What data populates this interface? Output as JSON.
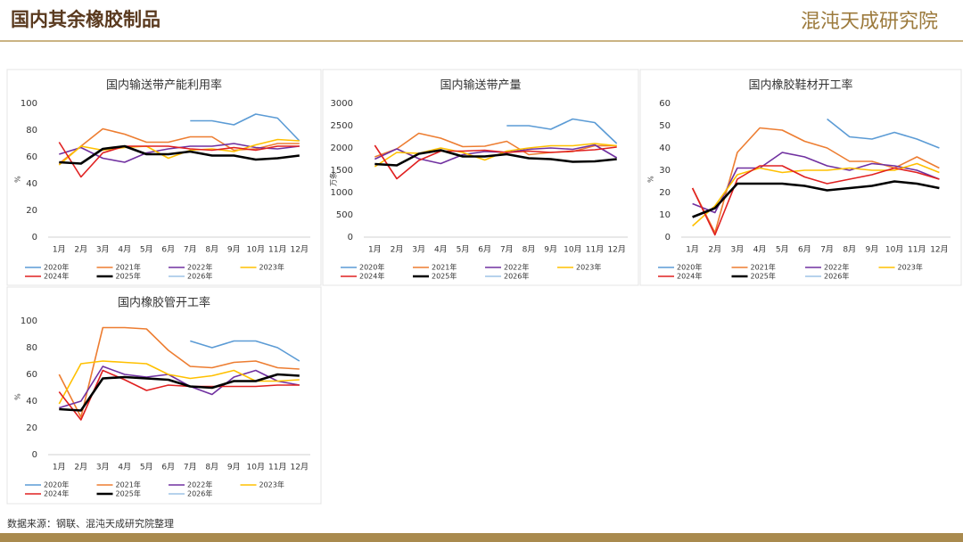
{
  "header": {
    "title": "国内其余橡胶制品",
    "logo": "混沌天成研究院"
  },
  "source": "数据来源：钢联、混沌天成研究院整理",
  "chart_data": [
    {
      "type": "line",
      "title": "国内输送带产能利用率",
      "ylabel": "%",
      "categories": [
        "1月",
        "2月",
        "3月",
        "4月",
        "5月",
        "6月",
        "7月",
        "8月",
        "9月",
        "10月",
        "11月",
        "12月"
      ],
      "ylim": [
        0,
        100
      ],
      "yticks": [
        0,
        20,
        40,
        60,
        80,
        100
      ],
      "series": [
        {
          "name": "2020年",
          "color": "#5b9bd5",
          "values": [
            null,
            null,
            null,
            null,
            null,
            null,
            87,
            87,
            84,
            92,
            89,
            72
          ]
        },
        {
          "name": "2021年",
          "color": "#ed7d31",
          "values": [
            55,
            68,
            81,
            77,
            71,
            71,
            75,
            75,
            65,
            66,
            70,
            70
          ]
        },
        {
          "name": "2022年",
          "color": "#7030a0",
          "values": [
            62,
            67,
            59,
            56,
            63,
            66,
            68,
            68,
            70,
            67,
            66,
            68
          ]
        },
        {
          "name": "2023年",
          "color": "#ffc000",
          "values": [
            54,
            68,
            65,
            67,
            68,
            59,
            65,
            66,
            64,
            69,
            73,
            72
          ]
        },
        {
          "name": "2024年",
          "color": "#e02020",
          "values": [
            71,
            45,
            63,
            68,
            68,
            68,
            66,
            65,
            67,
            65,
            68,
            68
          ]
        },
        {
          "name": "2025年",
          "color": "#000000",
          "values": [
            56,
            55,
            66,
            68,
            62,
            62,
            64,
            61,
            61,
            58,
            59,
            61
          ]
        },
        {
          "name": "2026年",
          "color": "#9dc3e6",
          "values": [
            null,
            null,
            null,
            null,
            null,
            null,
            null,
            null,
            null,
            null,
            null,
            null
          ]
        }
      ]
    },
    {
      "type": "line",
      "title": "国内输送带产量",
      "ylabel": "万条",
      "categories": [
        "1月",
        "2月",
        "3月",
        "4月",
        "5月",
        "6月",
        "7月",
        "8月",
        "9月",
        "10月",
        "11月",
        "12月"
      ],
      "ylim": [
        0,
        3000
      ],
      "yticks": [
        0,
        500,
        1000,
        1500,
        2000,
        2500,
        3000
      ],
      "series": [
        {
          "name": "2020年",
          "color": "#5b9bd5",
          "values": [
            null,
            null,
            null,
            null,
            null,
            null,
            2500,
            2500,
            2420,
            2650,
            2570,
            2100
          ]
        },
        {
          "name": "2021年",
          "color": "#ed7d31",
          "values": [
            1800,
            1980,
            2330,
            2220,
            2030,
            2040,
            2150,
            1850,
            1900,
            1920,
            2050,
            2050
          ]
        },
        {
          "name": "2022年",
          "color": "#7030a0",
          "values": [
            1750,
            1980,
            1760,
            1650,
            1850,
            1920,
            1900,
            1970,
            2000,
            1970,
            2070,
            1780
          ]
        },
        {
          "name": "2023年",
          "color": "#ffc000",
          "values": [
            1580,
            1900,
            1880,
            2000,
            1900,
            1730,
            1930,
            2000,
            2050,
            2050,
            2100,
            2050
          ]
        },
        {
          "name": "2024年",
          "color": "#e02020",
          "values": [
            2060,
            1310,
            1720,
            1930,
            1930,
            1950,
            1900,
            1930,
            1900,
            1930,
            1960,
            2020
          ]
        },
        {
          "name": "2025年",
          "color": "#000000",
          "values": [
            1640,
            1610,
            1870,
            1950,
            1810,
            1810,
            1860,
            1770,
            1750,
            1690,
            1700,
            1750
          ]
        },
        {
          "name": "2026年",
          "color": "#9dc3e6",
          "values": [
            null,
            null,
            null,
            null,
            null,
            null,
            null,
            null,
            null,
            null,
            null,
            null
          ]
        }
      ]
    },
    {
      "type": "line",
      "title": "国内橡胶鞋材开工率",
      "ylabel": "%",
      "categories": [
        "1月",
        "2月",
        "3月",
        "4月",
        "5月",
        "6月",
        "7月",
        "8月",
        "9月",
        "10月",
        "11月",
        "12月"
      ],
      "ylim": [
        0,
        60
      ],
      "yticks": [
        0,
        10,
        20,
        30,
        40,
        50,
        60
      ],
      "series": [
        {
          "name": "2020年",
          "color": "#5b9bd5",
          "values": [
            null,
            null,
            null,
            null,
            null,
            null,
            53,
            45,
            44,
            47,
            44,
            40
          ]
        },
        {
          "name": "2021年",
          "color": "#ed7d31",
          "values": [
            22,
            2,
            38,
            49,
            48,
            43,
            40,
            34,
            34,
            31,
            36,
            31
          ]
        },
        {
          "name": "2022年",
          "color": "#7030a0",
          "values": [
            15,
            11,
            31,
            31,
            38,
            36,
            32,
            30,
            33,
            32,
            30,
            26
          ]
        },
        {
          "name": "2023年",
          "color": "#ffc000",
          "values": [
            5,
            14,
            28,
            31,
            29,
            30,
            30,
            31,
            30,
            30,
            33,
            29
          ]
        },
        {
          "name": "2024年",
          "color": "#e02020",
          "values": [
            22,
            1,
            26,
            32,
            32,
            27,
            24,
            26,
            28,
            31,
            29,
            26
          ]
        },
        {
          "name": "2025年",
          "color": "#000000",
          "values": [
            9,
            13,
            24,
            24,
            24,
            23,
            21,
            22,
            23,
            25,
            24,
            22
          ]
        },
        {
          "name": "2026年",
          "color": "#9dc3e6",
          "values": [
            null,
            null,
            null,
            null,
            null,
            null,
            null,
            null,
            null,
            null,
            null,
            null
          ]
        }
      ]
    },
    {
      "type": "line",
      "title": "国内橡胶管开工率",
      "ylabel": "%",
      "categories": [
        "1月",
        "2月",
        "3月",
        "4月",
        "5月",
        "6月",
        "7月",
        "8月",
        "9月",
        "10月",
        "11月",
        "12月"
      ],
      "ylim": [
        0,
        100
      ],
      "yticks": [
        0,
        20,
        40,
        60,
        80,
        100
      ],
      "series": [
        {
          "name": "2020年",
          "color": "#5b9bd5",
          "values": [
            null,
            null,
            null,
            null,
            null,
            null,
            85,
            80,
            85,
            85,
            80,
            70
          ]
        },
        {
          "name": "2021年",
          "color": "#ed7d31",
          "values": [
            60,
            28,
            95,
            95,
            94,
            78,
            66,
            65,
            69,
            70,
            65,
            64
          ]
        },
        {
          "name": "2022年",
          "color": "#7030a0",
          "values": [
            35,
            40,
            66,
            60,
            58,
            60,
            51,
            45,
            58,
            63,
            55,
            52
          ]
        },
        {
          "name": "2023年",
          "color": "#ffc000",
          "values": [
            38,
            68,
            70,
            69,
            68,
            60,
            57,
            59,
            63,
            55,
            55,
            56
          ]
        },
        {
          "name": "2024年",
          "color": "#e02020",
          "values": [
            47,
            26,
            63,
            56,
            48,
            52,
            51,
            51,
            51,
            51,
            52,
            52
          ]
        },
        {
          "name": "2025年",
          "color": "#000000",
          "values": [
            34,
            33,
            57,
            58,
            57,
            56,
            51,
            50,
            55,
            55,
            60,
            59
          ]
        },
        {
          "name": "2026年",
          "color": "#9dc3e6",
          "values": [
            null,
            null,
            null,
            null,
            null,
            null,
            null,
            null,
            null,
            null,
            null,
            null
          ]
        }
      ]
    }
  ]
}
